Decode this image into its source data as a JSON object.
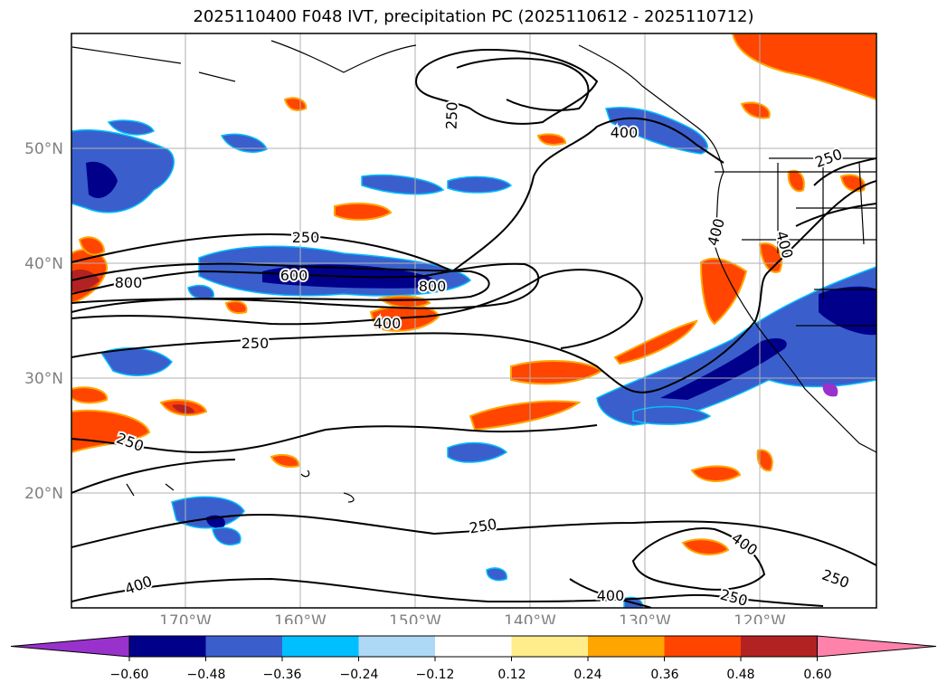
{
  "title": "2025110400 F048 IVT, precipitation PC (2025110612 - 2025110712)",
  "axes": {
    "lat_labels": [
      "50°N",
      "40°N",
      "30°N",
      "20°N"
    ],
    "lon_labels": [
      "170°W",
      "160°W",
      "150°W",
      "140°W",
      "130°W",
      "120°W"
    ]
  },
  "contour_labels": [
    "250",
    "400",
    "250",
    "400",
    "400",
    "250",
    "600",
    "800",
    "800",
    "400",
    "250",
    "250",
    "250",
    "400",
    "400",
    "400",
    "250"
  ],
  "colorbar": {
    "ticks": [
      "−0.60",
      "−0.48",
      "−0.36",
      "−0.24",
      "−0.12",
      "0.12",
      "0.24",
      "0.36",
      "0.48",
      "0.60"
    ],
    "colors": [
      "#9932cc",
      "#00008b",
      "#3a5fcd",
      "#00bfff",
      "#add8f6",
      "#ffffff",
      "#ffec8b",
      "#ffa500",
      "#ff4500",
      "#b22222",
      "#ff82ab"
    ]
  }
}
